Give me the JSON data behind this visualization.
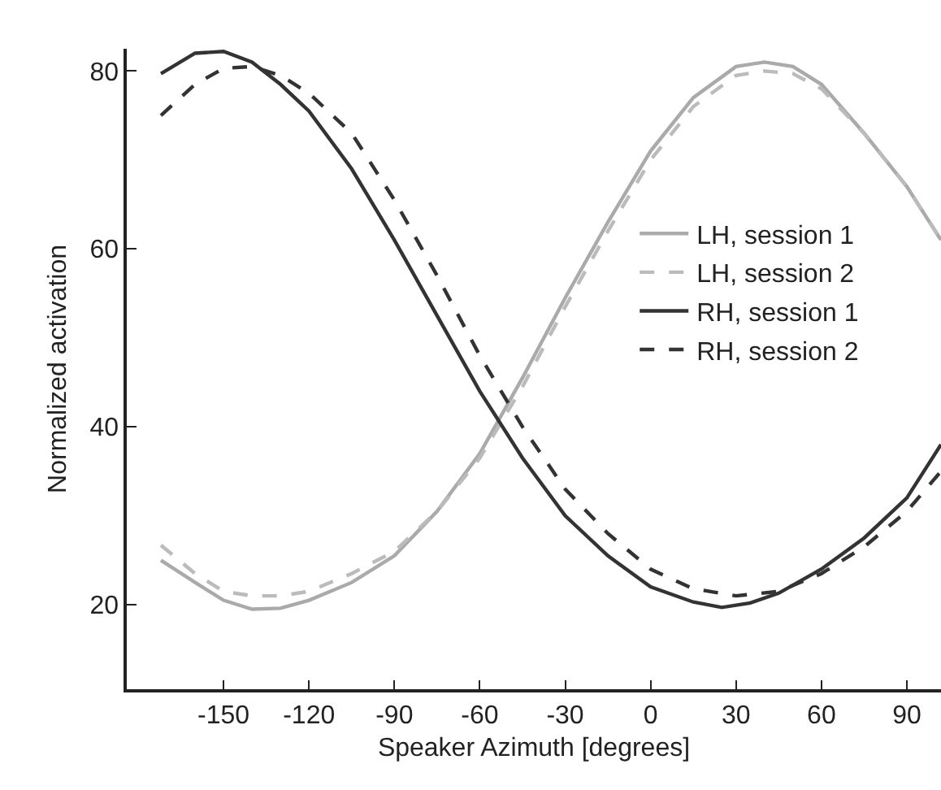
{
  "chart_data": {
    "type": "line",
    "xlabel": "Speaker Azimuth [degrees]",
    "ylabel": "Normalized activation",
    "xlim": [
      -184,
      102
    ],
    "xticks": [
      -150,
      -120,
      -90,
      -60,
      -30,
      0,
      30,
      60,
      90
    ],
    "ylim": [
      10.5,
      82.5
    ],
    "yticks": [
      20,
      40,
      60,
      80
    ],
    "grid": false,
    "legend": "right",
    "marker": "none",
    "series": [
      {
        "name": "LH, session 1",
        "color": "#aaaaaa",
        "line_style": "solid",
        "x": [
          -172,
          -160,
          -150,
          -140,
          -130,
          -120,
          -105,
          -90,
          -75,
          -60,
          -45,
          -30,
          -15,
          0,
          15,
          30,
          40,
          50,
          60,
          75,
          90,
          102
        ],
        "values": [
          25,
          22.5,
          20.5,
          19.5,
          19.6,
          20.5,
          22.5,
          25.5,
          30.5,
          37,
          45.5,
          54.5,
          63,
          71,
          77,
          80.5,
          81,
          80.5,
          78.5,
          73,
          67,
          61
        ]
      },
      {
        "name": "LH, session 2",
        "color": "#bbbbbb",
        "line_style": "dashed",
        "x": [
          -172,
          -160,
          -150,
          -140,
          -130,
          -120,
          -105,
          -90,
          -75,
          -60,
          -45,
          -30,
          -15,
          0,
          15,
          30,
          40,
          50,
          60,
          75,
          90,
          102
        ],
        "values": [
          26.7,
          23.5,
          21.5,
          21,
          21,
          21.5,
          23.5,
          26,
          30.5,
          36.5,
          44.5,
          53.5,
          62,
          70,
          76,
          79.5,
          80,
          79.7,
          78,
          73,
          67,
          61
        ]
      },
      {
        "name": "RH, session 1",
        "color": "#333333",
        "line_style": "solid",
        "x": [
          -172,
          -160,
          -150,
          -140,
          -130,
          -120,
          -105,
          -90,
          -75,
          -60,
          -45,
          -30,
          -15,
          0,
          15,
          25,
          35,
          45,
          60,
          75,
          90,
          102
        ],
        "values": [
          79.7,
          82,
          82.2,
          81,
          78.5,
          75.5,
          69,
          61,
          52.5,
          44,
          36.5,
          30,
          25.5,
          22,
          20.3,
          19.7,
          20.2,
          21.3,
          24,
          27.5,
          32,
          38
        ]
      },
      {
        "name": "RH, session 2",
        "color": "#333333",
        "line_style": "dashed",
        "x": [
          -172,
          -160,
          -150,
          -140,
          -130,
          -120,
          -105,
          -90,
          -75,
          -60,
          -45,
          -30,
          -15,
          0,
          15,
          30,
          45,
          60,
          75,
          90,
          102
        ],
        "values": [
          75,
          78.5,
          80.3,
          80.5,
          79.5,
          77.5,
          73,
          65.5,
          57,
          48,
          40,
          33,
          28,
          24,
          21.8,
          21,
          21.5,
          23.5,
          26.5,
          30.5,
          35
        ]
      }
    ]
  }
}
